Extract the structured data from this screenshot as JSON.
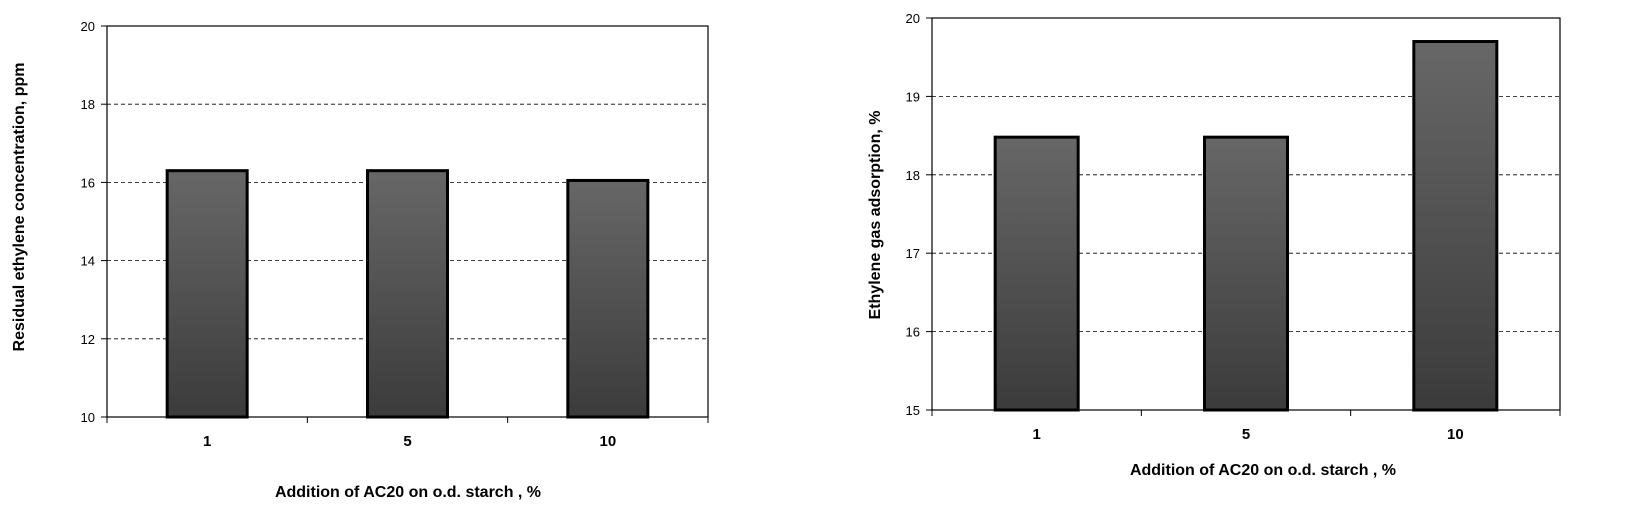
{
  "chart_data": [
    {
      "type": "bar",
      "title": "",
      "categories": [
        "1",
        "5",
        "10"
      ],
      "values": [
        16.3,
        16.3,
        16.05
      ],
      "xlabel": "Addition of AC20 on o.d. starch , %",
      "ylabel": "Residual ethylene concentration, ppm",
      "ylim": [
        10,
        20
      ],
      "yticks": [
        "10",
        "12",
        "14",
        "16",
        "18",
        "20"
      ],
      "grid": "horizontal dashed",
      "legend": "none",
      "bar_color": "#4a4a4a"
    },
    {
      "type": "bar",
      "title": "",
      "categories": [
        "1",
        "5",
        "10"
      ],
      "values": [
        18.48,
        18.48,
        19.7
      ],
      "xlabel": "Addition of AC20 on o.d. starch , %",
      "ylabel": "Ethylene gas adsorption, %",
      "ylim": [
        15,
        20
      ],
      "yticks": [
        "15",
        "16",
        "17",
        "18",
        "19",
        "20"
      ],
      "grid": "horizontal dashed",
      "legend": "none",
      "bar_color": "#4a4a4a"
    }
  ]
}
